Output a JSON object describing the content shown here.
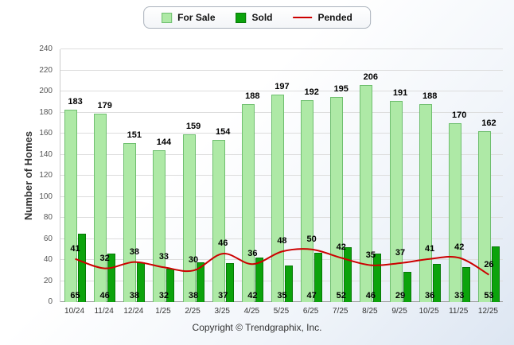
{
  "chart_data": {
    "type": "bar",
    "categories": [
      "10/24",
      "11/24",
      "12/24",
      "1/25",
      "2/25",
      "3/25",
      "4/25",
      "5/25",
      "6/25",
      "7/25",
      "8/25",
      "9/25",
      "10/25",
      "11/25",
      "12/25"
    ],
    "series": [
      {
        "name": "For Sale",
        "type": "bar",
        "color": "#AEE9A6",
        "border": "#6FBF6F",
        "values": [
          183,
          179,
          151,
          144,
          159,
          154,
          188,
          197,
          192,
          195,
          206,
          191,
          188,
          170,
          162
        ]
      },
      {
        "name": "Sold",
        "type": "bar",
        "color": "#0CA30C",
        "border": "#067806",
        "values": [
          65,
          46,
          38,
          32,
          38,
          37,
          42,
          35,
          47,
          52,
          46,
          29,
          36,
          33,
          53
        ]
      },
      {
        "name": "Pended",
        "type": "line",
        "color": "#CC0000",
        "values": [
          41,
          32,
          38,
          33,
          30,
          46,
          36,
          48,
          50,
          42,
          35,
          37,
          41,
          42,
          26
        ]
      }
    ],
    "title": "",
    "xlabel": "",
    "ylabel": "Number of Homes",
    "ylim": [
      0,
      240
    ],
    "ytick_step": 20,
    "grid": true,
    "legend_position": "top"
  },
  "footer": {
    "copyright": "Copyright © Trendgraphix, Inc."
  }
}
